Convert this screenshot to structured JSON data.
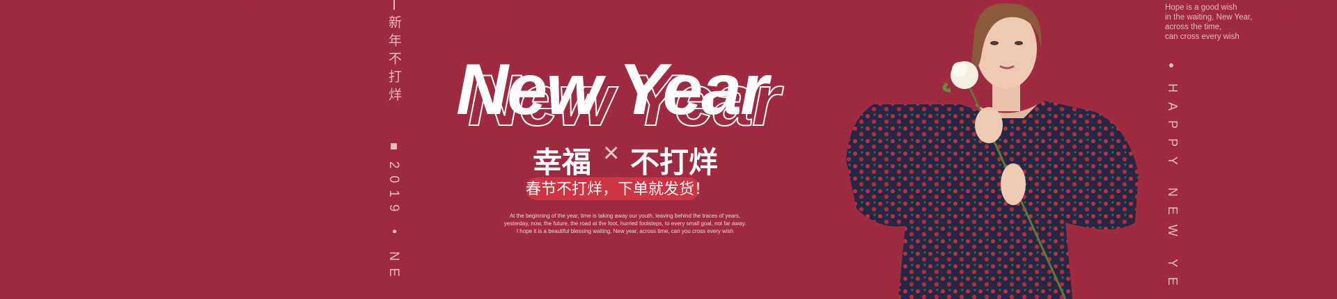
{
  "left_vertical": {
    "chinese": "新年不打烊",
    "english": "2019 • NE"
  },
  "title": "New Year",
  "subtitle": {
    "left": "幸福",
    "separator": "×",
    "right": "不打烊"
  },
  "tagline": "春节不打烊，下单就发货！",
  "paragraph": [
    "At the beginning of the year, time is taking away our youth, leaving behind the traces of years,",
    "yesterday, now, the future, the road at the foot, hurried footsteps, to every small goal, not far away.",
    "I hope it is a beautiful blessing waiting. New year, across time, can you cross every wish"
  ],
  "right_text": [
    "Hope is a good wish",
    "in the waiting, New Year,",
    "across the time,",
    "can cross every wish"
  ],
  "right_vertical": "HAPPY NEW YE"
}
